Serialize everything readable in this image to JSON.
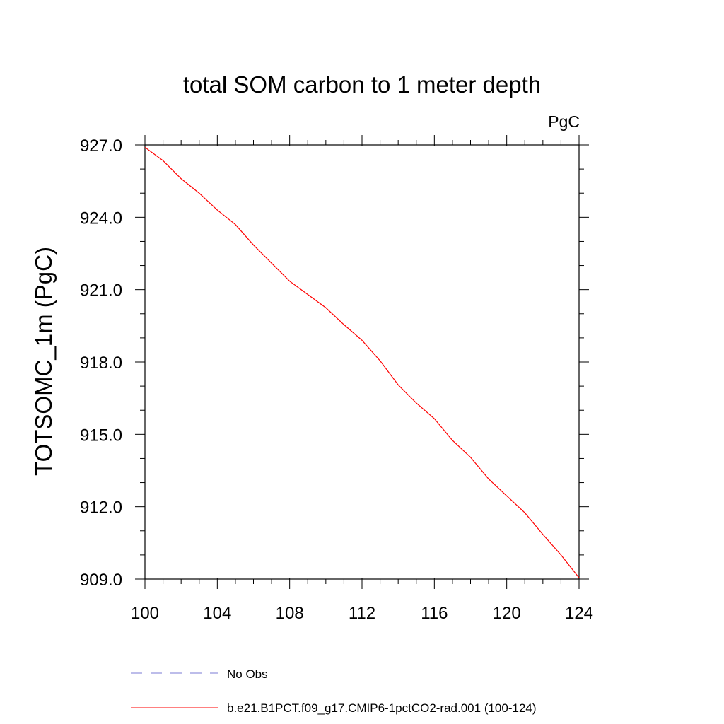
{
  "chart_data": {
    "type": "line",
    "title": "total SOM carbon to 1 meter depth",
    "units": "PgC",
    "xlabel": "",
    "ylabel": "TOTSOMC_1m  (PgC)",
    "xlim": [
      100,
      124
    ],
    "ylim": [
      909.0,
      927.0
    ],
    "x_ticks": [
      "100",
      "104",
      "108",
      "112",
      "116",
      "120",
      "124"
    ],
    "y_ticks": [
      "909.0",
      "912.0",
      "915.0",
      "918.0",
      "921.0",
      "924.0",
      "927.0"
    ],
    "grid": false,
    "legend_position": "bottom",
    "series": [
      {
        "name": "No Obs",
        "color": "#7b7bd6",
        "style": "dashed",
        "x": [],
        "y": []
      },
      {
        "name": "b.e21.B1PCT.f09_g17.CMIP6-1pctCO2-rad.001 (100-124)",
        "color": "#ff0000",
        "style": "solid",
        "x": [
          100,
          101,
          102,
          103,
          104,
          105,
          106,
          107,
          108,
          109,
          110,
          111,
          112,
          113,
          114,
          115,
          116,
          117,
          118,
          119,
          120,
          121,
          122,
          123,
          124
        ],
        "y": [
          926.9,
          926.35,
          925.6,
          925.0,
          924.3,
          923.7,
          922.85,
          922.1,
          921.35,
          920.8,
          920.25,
          919.55,
          918.9,
          918.05,
          917.05,
          916.3,
          915.65,
          914.75,
          914.05,
          913.15,
          912.45,
          911.75,
          910.85,
          910.0,
          909.05
        ]
      }
    ]
  }
}
